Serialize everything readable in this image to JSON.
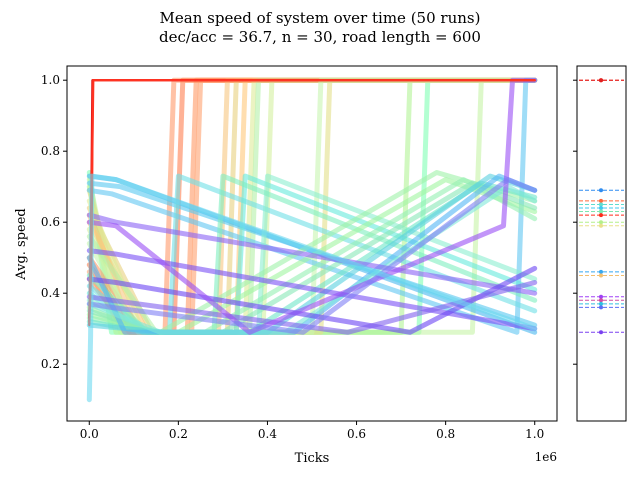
{
  "chart_data": {
    "type": "line",
    "title": "Mean speed of system over time (50 runs)",
    "subtitle": "dec/acc = 36.7, n = 30, road length = 600",
    "xlabel": "Ticks",
    "ylabel": "Avg. speed",
    "x_offset_label": "1e6",
    "xlim": [
      -0.05,
      1.05
    ],
    "ylim": [
      0.04,
      1.04
    ],
    "xticks": [
      0.0,
      0.2,
      0.4,
      0.6,
      0.8,
      1.0
    ],
    "xtick_labels": [
      "0.0",
      "0.2",
      "0.4",
      "0.6",
      "0.8",
      "1.0"
    ],
    "yticks": [
      0.2,
      0.4,
      0.6,
      0.8,
      1.0
    ],
    "ytick_labels": [
      "0.2",
      "0.4",
      "0.6",
      "0.8",
      "1.0"
    ],
    "grid": false,
    "legend": "side panel, right, legend entries without text",
    "colormap": "rainbow",
    "series": [
      {
        "color": "#80ffb4",
        "points": [
          [
            0,
            0.74
          ],
          [
            0.05,
            0.29
          ],
          [
            0.74,
            0.29
          ],
          [
            0.76,
            1.0
          ],
          [
            1.0,
            1.0
          ]
        ]
      },
      {
        "color": "#c7f3a6",
        "points": [
          [
            0,
            0.72
          ],
          [
            0.07,
            0.29
          ],
          [
            0.86,
            0.29
          ],
          [
            0.88,
            1.0
          ],
          [
            1.0,
            1.0
          ]
        ]
      },
      {
        "color": "#b2f396",
        "points": [
          [
            0,
            0.7
          ],
          [
            0.06,
            0.29
          ],
          [
            0.7,
            0.29
          ],
          [
            0.72,
            1.0
          ],
          [
            1.0,
            1.0
          ]
        ]
      },
      {
        "color": "#e3e08b",
        "points": [
          [
            0,
            0.69
          ],
          [
            0.09,
            0.29
          ],
          [
            0.52,
            0.29
          ],
          [
            0.54,
            1.0
          ],
          [
            1.0,
            1.0
          ]
        ]
      },
      {
        "color": "#ff9966",
        "points": [
          [
            0,
            0.5
          ],
          [
            0.12,
            0.29
          ],
          [
            0.22,
            0.29
          ],
          [
            0.24,
            1.0
          ],
          [
            1.0,
            1.0
          ]
        ]
      },
      {
        "color": "#ff7f50",
        "points": [
          [
            0,
            0.48
          ],
          [
            0.1,
            0.29
          ],
          [
            0.19,
            0.29
          ],
          [
            0.21,
            1.0
          ],
          [
            1.0,
            1.0
          ]
        ]
      },
      {
        "color": "#ffa270",
        "points": [
          [
            0,
            0.46
          ],
          [
            0.08,
            0.29
          ],
          [
            0.23,
            0.29
          ],
          [
            0.25,
            1.0
          ],
          [
            1.0,
            1.0
          ]
        ]
      },
      {
        "color": "#f6c781",
        "points": [
          [
            0,
            0.62
          ],
          [
            0.11,
            0.29
          ],
          [
            0.29,
            0.29
          ],
          [
            0.31,
            1.0
          ],
          [
            1.0,
            1.0
          ]
        ]
      },
      {
        "color": "#e8d07f",
        "points": [
          [
            0,
            0.64
          ],
          [
            0.14,
            0.29
          ],
          [
            0.31,
            0.29
          ],
          [
            0.33,
            1.0
          ],
          [
            1.0,
            1.0
          ]
        ]
      },
      {
        "color": "#ffc87a",
        "points": [
          [
            0,
            0.6
          ],
          [
            0.13,
            0.29
          ],
          [
            0.33,
            0.29
          ],
          [
            0.35,
            1.0
          ],
          [
            1.0,
            1.0
          ]
        ]
      },
      {
        "color": "#ddeb9a",
        "points": [
          [
            0,
            0.66
          ],
          [
            0.12,
            0.29
          ],
          [
            0.35,
            0.29
          ],
          [
            0.37,
            1.0
          ],
          [
            1.0,
            1.0
          ]
        ]
      },
      {
        "color": "#d4f0a0",
        "points": [
          [
            0,
            0.58
          ],
          [
            0.1,
            0.29
          ],
          [
            0.39,
            0.29
          ],
          [
            0.41,
            1.0
          ],
          [
            1.0,
            1.0
          ]
        ]
      },
      {
        "color": "#b4f0a8",
        "points": [
          [
            0,
            0.56
          ],
          [
            0.15,
            0.29
          ],
          [
            0.36,
            0.29
          ],
          [
            0.38,
            1.0
          ],
          [
            1.0,
            1.0
          ]
        ]
      },
      {
        "color": "#ff9a6b",
        "points": [
          [
            0,
            0.44
          ],
          [
            0.09,
            0.29
          ],
          [
            0.17,
            0.29
          ],
          [
            0.19,
            1.0
          ],
          [
            1.0,
            1.0
          ]
        ]
      },
      {
        "color": "#c8f5b0",
        "points": [
          [
            0,
            0.54
          ],
          [
            0.11,
            0.29
          ],
          [
            0.5,
            0.29
          ],
          [
            0.52,
            1.0
          ],
          [
            1.0,
            1.0
          ]
        ]
      },
      {
        "color": "#4ab8ef",
        "points": [
          [
            0,
            0.73
          ],
          [
            0.06,
            0.72
          ],
          [
            1.0,
            0.29
          ]
        ]
      },
      {
        "color": "#58c8f0",
        "points": [
          [
            0,
            0.71
          ],
          [
            0.07,
            0.7
          ],
          [
            1.0,
            0.31
          ]
        ]
      },
      {
        "color": "#60c6f1",
        "points": [
          [
            0,
            0.69
          ],
          [
            0.05,
            0.68
          ],
          [
            0.96,
            0.29
          ],
          [
            0.98,
            1.0
          ],
          [
            1.0,
            1.0
          ]
        ]
      },
      {
        "color": "#6fe0e6",
        "points": [
          [
            0,
            0.42
          ],
          [
            0.13,
            0.29
          ],
          [
            0.18,
            0.29
          ],
          [
            0.2,
            0.73
          ],
          [
            1.0,
            0.35
          ]
        ]
      },
      {
        "color": "#66eadc",
        "points": [
          [
            0,
            0.4
          ],
          [
            0.12,
            0.29
          ],
          [
            0.33,
            0.29
          ],
          [
            0.35,
            0.73
          ],
          [
            1.0,
            0.41
          ]
        ]
      },
      {
        "color": "#8cefd0",
        "points": [
          [
            0,
            0.38
          ],
          [
            0.14,
            0.29
          ],
          [
            0.38,
            0.29
          ],
          [
            0.4,
            0.73
          ],
          [
            1.0,
            0.44
          ]
        ]
      },
      {
        "color": "#7fefc0",
        "points": [
          [
            0,
            0.45
          ],
          [
            0.13,
            0.29
          ],
          [
            0.28,
            0.29
          ],
          [
            0.3,
            0.73
          ],
          [
            1.0,
            0.38
          ]
        ]
      },
      {
        "color": "#9ef2a8",
        "points": [
          [
            0,
            0.36
          ],
          [
            0.12,
            0.29
          ],
          [
            0.16,
            0.29
          ],
          [
            0.78,
            0.74
          ],
          [
            1.0,
            0.66
          ]
        ]
      },
      {
        "color": "#a0f5a0",
        "points": [
          [
            0,
            0.34
          ],
          [
            0.14,
            0.29
          ],
          [
            0.2,
            0.29
          ],
          [
            0.8,
            0.72
          ],
          [
            1.0,
            0.63
          ]
        ]
      },
      {
        "color": "#94f0b2",
        "points": [
          [
            0,
            0.33
          ],
          [
            0.16,
            0.29
          ],
          [
            0.26,
            0.29
          ],
          [
            0.84,
            0.72
          ],
          [
            1.0,
            0.61
          ]
        ]
      },
      {
        "color": "#88e8b8",
        "points": [
          [
            0,
            0.35
          ],
          [
            0.15,
            0.29
          ],
          [
            0.3,
            0.29
          ],
          [
            0.86,
            0.71
          ],
          [
            1.0,
            0.64
          ]
        ]
      },
      {
        "color": "#6ee6c8",
        "points": [
          [
            0,
            0.32
          ],
          [
            0.13,
            0.29
          ],
          [
            0.36,
            0.29
          ],
          [
            0.88,
            0.71
          ],
          [
            1.0,
            0.67
          ]
        ]
      },
      {
        "color": "#5ad0e0",
        "points": [
          [
            0,
            0.31
          ],
          [
            0.17,
            0.29
          ],
          [
            0.4,
            0.29
          ],
          [
            0.9,
            0.73
          ],
          [
            1.0,
            0.69
          ]
        ]
      },
      {
        "color": "#54b5f5",
        "points": [
          [
            0,
            0.5
          ],
          [
            0.08,
            0.29
          ],
          [
            0.46,
            0.29
          ],
          [
            0.92,
            0.73
          ],
          [
            1.0,
            0.69
          ]
        ]
      },
      {
        "color": "#7fe8d8",
        "points": [
          [
            0,
            0.37
          ],
          [
            0.16,
            0.29
          ],
          [
            0.44,
            0.29
          ],
          [
            0.94,
            0.7
          ],
          [
            1.0,
            0.66
          ]
        ]
      },
      {
        "color": "#8a62f5",
        "points": [
          [
            0,
            0.62
          ],
          [
            0.06,
            0.6
          ],
          [
            1.0,
            0.4
          ]
        ]
      },
      {
        "color": "#7a50f5",
        "points": [
          [
            0,
            0.52
          ],
          [
            0.06,
            0.51
          ],
          [
            1.0,
            0.3
          ]
        ]
      },
      {
        "color": "#6a44f3",
        "points": [
          [
            0,
            0.44
          ],
          [
            0.06,
            0.43
          ],
          [
            0.72,
            0.29
          ],
          [
            1.0,
            0.47
          ]
        ]
      },
      {
        "color": "#8060ee",
        "points": [
          [
            0,
            0.39
          ],
          [
            0.05,
            0.38
          ],
          [
            0.58,
            0.29
          ],
          [
            1.0,
            0.43
          ]
        ]
      },
      {
        "color": "#9a4ff5",
        "points": [
          [
            0,
            0.6
          ],
          [
            0.06,
            0.59
          ],
          [
            0.36,
            0.29
          ],
          [
            0.93,
            0.59
          ],
          [
            0.95,
            1.0
          ],
          [
            1.0,
            1.0
          ]
        ]
      },
      {
        "color": "#7f7ff5",
        "points": [
          [
            0,
            0.37
          ],
          [
            0.05,
            0.36
          ],
          [
            0.48,
            0.29
          ],
          [
            0.94,
            0.72
          ],
          [
            1.0,
            0.69
          ]
        ]
      },
      {
        "color": "#ff2a15",
        "points": [
          [
            0,
            0.31
          ],
          [
            0.005,
            0.5
          ],
          [
            0.008,
            1.0
          ],
          [
            1.0,
            1.0
          ]
        ]
      },
      {
        "color": "#e01818",
        "points": [
          [
            0,
            0.33
          ],
          [
            0.004,
            0.6
          ],
          [
            0.007,
            1.0
          ],
          [
            1.0,
            1.0
          ]
        ]
      },
      {
        "color": "#ff3322",
        "points": [
          [
            0,
            0.32
          ],
          [
            0.006,
            0.7
          ],
          [
            0.009,
            1.0
          ],
          [
            1.0,
            1.0
          ]
        ]
      },
      {
        "color": "#6cd9f0",
        "points": [
          [
            0,
            0.1
          ],
          [
            0.003,
            0.28
          ],
          [
            0.006,
            0.73
          ],
          [
            0.06,
            0.72
          ],
          [
            1.0,
            0.3
          ]
        ]
      }
    ],
    "legend_markers": [
      {
        "y": 1.0,
        "color": "#ff1500"
      },
      {
        "y": 1.0,
        "color": "#e02020"
      },
      {
        "y": 0.69,
        "color": "#2f8cf0"
      },
      {
        "y": 0.66,
        "color": "#ff6a3d"
      },
      {
        "y": 0.65,
        "color": "#5fdcd0"
      },
      {
        "y": 0.64,
        "color": "#40c8f0"
      },
      {
        "y": 0.63,
        "color": "#7ce8b0"
      },
      {
        "y": 0.62,
        "color": "#ff2a1a"
      },
      {
        "y": 0.6,
        "color": "#b4f08a"
      },
      {
        "y": 0.59,
        "color": "#e8e08a"
      },
      {
        "y": 0.46,
        "color": "#36a8f0"
      },
      {
        "y": 0.45,
        "color": "#f4c070"
      },
      {
        "y": 0.39,
        "color": "#a040f5"
      },
      {
        "y": 0.38,
        "color": "#d050a0"
      },
      {
        "y": 0.37,
        "color": "#30c0e0"
      },
      {
        "y": 0.36,
        "color": "#5a6ef5"
      },
      {
        "y": 0.29,
        "color": "#7a40f0"
      }
    ]
  }
}
